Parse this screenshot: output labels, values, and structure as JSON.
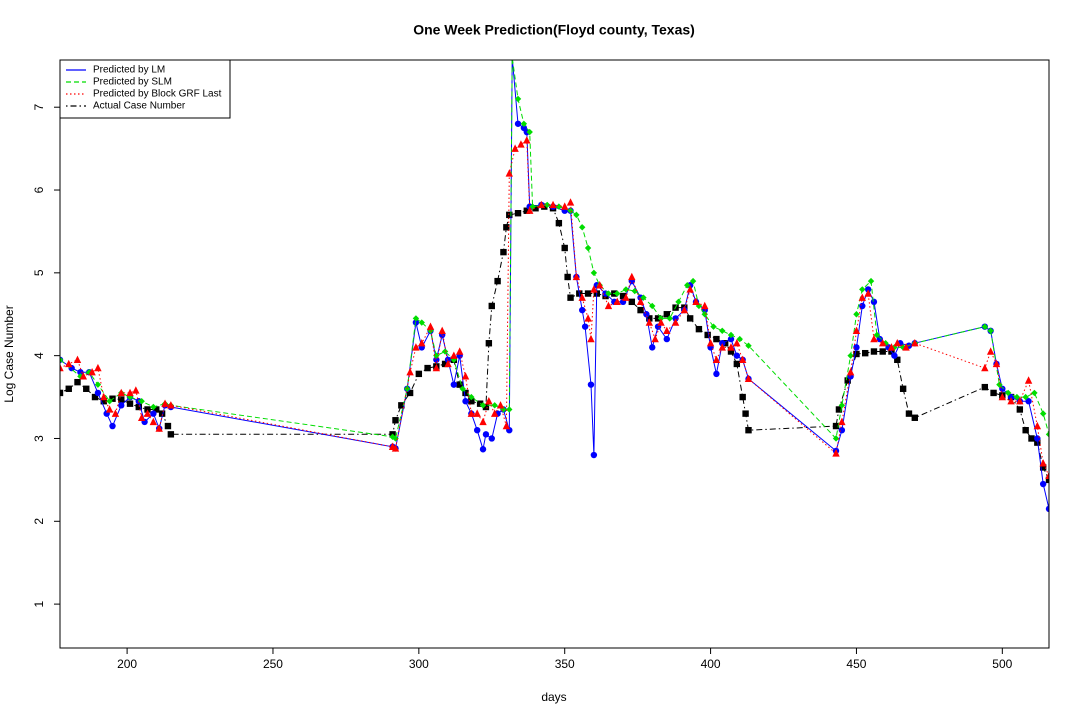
{
  "chart_data": {
    "type": "line",
    "title": "One Week Prediction(Floyd county, Texas)",
    "x_label": "days",
    "y_label": "Log Case Number",
    "xlim": [
      177,
      516
    ],
    "ylim": [
      0.47,
      7.57
    ],
    "xticks": [
      200,
      250,
      300,
      350,
      400,
      450,
      500
    ],
    "yticks": [
      1,
      2,
      3,
      4,
      5,
      6,
      7
    ],
    "legend": "top-left",
    "series": [
      {
        "name": "Predicted by LM",
        "color": "#0000ff",
        "dash": "solid",
        "marker": "circle",
        "x": [
          177,
          181,
          184,
          187,
          190,
          193,
          195,
          198,
          201,
          204,
          206,
          209,
          211,
          213,
          215,
          291,
          292,
          296,
          299,
          301,
          304,
          306,
          308,
          310,
          312,
          314,
          316,
          318,
          320,
          322,
          323,
          325,
          327,
          329,
          331,
          332,
          334,
          336,
          337,
          338,
          342,
          346,
          350,
          352,
          354,
          356,
          357,
          359,
          360,
          361,
          364,
          367,
          370,
          373,
          376,
          378,
          380,
          382,
          385,
          388,
          391,
          393,
          395,
          398,
          400,
          402,
          404,
          407,
          409,
          411,
          413,
          443,
          445,
          448,
          450,
          452,
          454,
          456,
          458,
          461,
          463,
          465,
          468,
          470,
          494,
          496,
          498,
          500,
          503,
          506,
          509,
          512,
          514,
          516
        ],
        "values": [
          3.95,
          3.85,
          3.8,
          3.8,
          3.55,
          3.3,
          3.15,
          3.4,
          3.5,
          3.45,
          3.2,
          3.3,
          3.12,
          3.4,
          3.38,
          2.9,
          2.88,
          3.6,
          4.4,
          4.1,
          4.3,
          3.95,
          4.25,
          3.95,
          3.65,
          4.0,
          3.45,
          3.3,
          3.1,
          2.87,
          3.05,
          3.0,
          3.3,
          3.35,
          3.1,
          7.6,
          6.8,
          6.75,
          6.7,
          5.8,
          5.82,
          5.8,
          5.75,
          5.75,
          4.95,
          4.55,
          4.35,
          3.65,
          2.8,
          4.85,
          4.75,
          4.65,
          4.65,
          4.9,
          4.7,
          4.5,
          4.1,
          4.35,
          4.2,
          4.45,
          4.55,
          4.85,
          4.65,
          4.55,
          4.1,
          3.78,
          4.15,
          4.2,
          4.0,
          3.95,
          3.72,
          2.85,
          3.1,
          3.75,
          4.1,
          4.6,
          4.8,
          4.65,
          4.2,
          4.1,
          4.0,
          4.15,
          4.12,
          4.15,
          4.35,
          4.3,
          3.9,
          3.6,
          3.5,
          3.45,
          3.45,
          3.0,
          2.45,
          2.15
        ]
      },
      {
        "name": "Predicted by SLM",
        "color": "#00dd00",
        "dash": "dashed",
        "marker": "diamond",
        "x": [
          177,
          184,
          187,
          190,
          194,
          198,
          201,
          205,
          209,
          213,
          215,
          291,
          292,
          296,
          299,
          301,
          304,
          306,
          309,
          312,
          315,
          318,
          322,
          326,
          329,
          331,
          332,
          334,
          336,
          338,
          339,
          344,
          348,
          352,
          354,
          356,
          358,
          360,
          362,
          365,
          368,
          371,
          374,
          377,
          380,
          383,
          386,
          389,
          392,
          394,
          396,
          398,
          401,
          404,
          407,
          410,
          413,
          443,
          445,
          448,
          450,
          452,
          455,
          457,
          460,
          463,
          466,
          470,
          494,
          496,
          499,
          502,
          505,
          508,
          511,
          514,
          516
        ],
        "values": [
          3.95,
          3.75,
          3.8,
          3.65,
          3.45,
          3.55,
          3.5,
          3.45,
          3.38,
          3.42,
          3.4,
          3.02,
          3.0,
          3.6,
          4.45,
          4.4,
          4.3,
          4.0,
          4.05,
          3.95,
          3.6,
          3.5,
          3.4,
          3.4,
          3.35,
          3.35,
          7.6,
          7.1,
          6.8,
          6.7,
          5.8,
          5.82,
          5.8,
          5.75,
          5.7,
          5.55,
          5.3,
          5.0,
          4.85,
          4.75,
          4.75,
          4.8,
          4.78,
          4.7,
          4.6,
          4.45,
          4.45,
          4.65,
          4.85,
          4.9,
          4.6,
          4.5,
          4.35,
          4.3,
          4.25,
          4.2,
          4.12,
          3.0,
          3.4,
          4.0,
          4.5,
          4.8,
          4.9,
          4.25,
          4.15,
          4.1,
          4.1,
          4.15,
          4.35,
          4.3,
          3.65,
          3.55,
          3.5,
          3.5,
          3.55,
          3.3,
          3.05
        ]
      },
      {
        "name": "Predicted by Block GRF Last",
        "color": "#ff0000",
        "dash": "dotted",
        "marker": "triangle",
        "x": [
          177,
          180,
          183,
          185,
          188,
          190,
          192,
          194,
          196,
          198,
          201,
          203,
          205,
          207,
          209,
          211,
          213,
          215,
          291,
          292,
          297,
          299,
          301,
          304,
          306,
          308,
          310,
          312,
          314,
          316,
          318,
          320,
          322,
          324,
          326,
          328,
          330,
          331,
          333,
          335,
          337,
          338,
          342,
          346,
          350,
          352,
          354,
          356,
          358,
          359,
          360,
          362,
          365,
          368,
          371,
          373,
          376,
          379,
          381,
          383,
          385,
          388,
          391,
          393,
          395,
          398,
          400,
          402,
          404,
          407,
          409,
          411,
          413,
          443,
          445,
          448,
          450,
          452,
          454,
          456,
          459,
          462,
          464,
          467,
          470,
          494,
          496,
          498,
          500,
          503,
          506,
          509,
          512,
          514,
          516
        ],
        "values": [
          3.85,
          3.9,
          3.95,
          3.75,
          3.8,
          3.85,
          3.5,
          3.35,
          3.3,
          3.55,
          3.55,
          3.58,
          3.25,
          3.3,
          3.2,
          3.12,
          3.42,
          3.4,
          2.9,
          2.88,
          3.8,
          4.1,
          4.15,
          4.35,
          3.85,
          4.3,
          3.9,
          4.0,
          4.05,
          3.75,
          3.3,
          3.3,
          3.2,
          3.45,
          3.3,
          3.4,
          3.15,
          6.2,
          6.5,
          6.55,
          6.6,
          5.75,
          5.82,
          5.82,
          5.8,
          5.85,
          4.95,
          4.7,
          4.45,
          4.2,
          4.8,
          4.85,
          4.6,
          4.65,
          4.7,
          4.95,
          4.65,
          4.4,
          4.2,
          4.4,
          4.3,
          4.4,
          4.55,
          4.8,
          4.65,
          4.6,
          4.15,
          3.95,
          4.1,
          4.1,
          4.15,
          3.95,
          3.72,
          2.82,
          3.2,
          3.8,
          4.3,
          4.7,
          4.75,
          4.2,
          4.15,
          4.1,
          4.15,
          4.1,
          4.15,
          3.85,
          4.05,
          3.9,
          3.5,
          3.45,
          3.45,
          3.7,
          3.15,
          2.7,
          2.55
        ]
      },
      {
        "name": "Actual Case Number",
        "color": "#000000",
        "dash": "dotdash",
        "marker": "square",
        "x": [
          177,
          180,
          183,
          186,
          189,
          192,
          195,
          198,
          201,
          204,
          207,
          210,
          212,
          214,
          215,
          291,
          292,
          294,
          297,
          300,
          303,
          306,
          309,
          312,
          314,
          316,
          318,
          321,
          323,
          324,
          325,
          327,
          329,
          330,
          331,
          334,
          337,
          340,
          343,
          346,
          348,
          350,
          351,
          352,
          355,
          358,
          361,
          364,
          367,
          370,
          373,
          376,
          379,
          382,
          385,
          388,
          391,
          393,
          396,
          399,
          402,
          405,
          407,
          409,
          411,
          412,
          413,
          443,
          444,
          447,
          450,
          453,
          456,
          459,
          462,
          464,
          466,
          468,
          470,
          494,
          497,
          500,
          503,
          506,
          508,
          510,
          512,
          514,
          516
        ],
        "values": [
          3.55,
          3.6,
          3.68,
          3.6,
          3.5,
          3.45,
          3.48,
          3.47,
          3.42,
          3.38,
          3.35,
          3.35,
          3.3,
          3.15,
          3.05,
          3.05,
          3.22,
          3.4,
          3.55,
          3.78,
          3.85,
          3.87,
          3.9,
          3.95,
          3.65,
          3.55,
          3.45,
          3.42,
          3.38,
          4.15,
          4.6,
          4.9,
          5.25,
          5.55,
          5.7,
          5.72,
          5.75,
          5.78,
          5.8,
          5.78,
          5.6,
          5.3,
          4.95,
          4.7,
          4.75,
          4.75,
          4.75,
          4.72,
          4.75,
          4.72,
          4.65,
          4.55,
          4.45,
          4.45,
          4.5,
          4.58,
          4.58,
          4.45,
          4.32,
          4.25,
          4.2,
          4.15,
          4.05,
          3.9,
          3.5,
          3.3,
          3.1,
          3.15,
          3.35,
          3.7,
          4.02,
          4.03,
          4.05,
          4.05,
          4.05,
          3.95,
          3.6,
          3.3,
          3.25,
          3.62,
          3.55,
          3.52,
          3.5,
          3.35,
          3.1,
          3.0,
          2.95,
          2.65,
          2.5
        ]
      }
    ]
  }
}
